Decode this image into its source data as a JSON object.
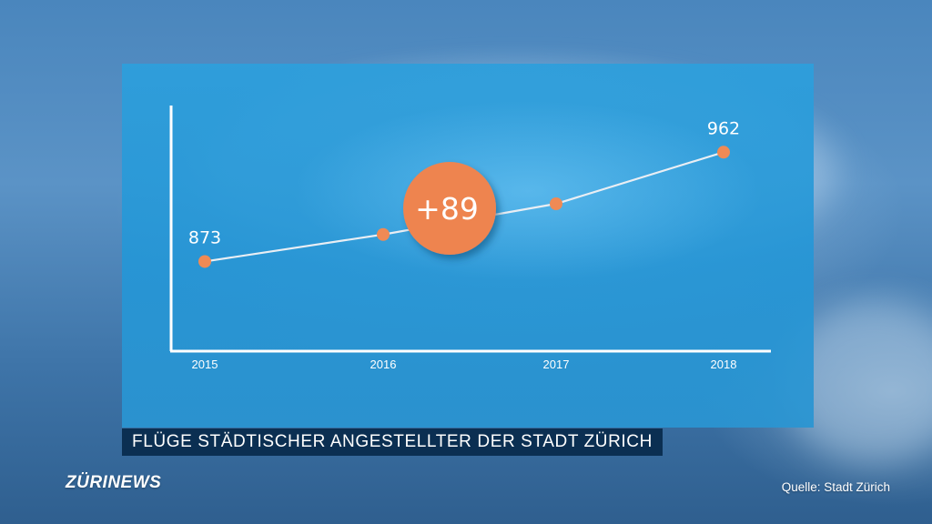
{
  "chart_data": {
    "type": "line",
    "categories": [
      "2015",
      "2016",
      "2017",
      "2018"
    ],
    "values": [
      873,
      895,
      920,
      962
    ],
    "data_labels": [
      "873",
      "",
      "",
      "962"
    ],
    "highlight_label": "+89",
    "title": "FLÜGE STÄDTISCHER ANGESTELLTER DER STADT ZÜRICH",
    "xlabel": "",
    "ylabel": "",
    "ylim": [
      800,
      1000
    ],
    "grid": false,
    "line_color": "#e9eef4",
    "marker_color": "#ef8a55",
    "badge_color": "#ee8450"
  },
  "caption": "FLÜGE STÄDTISCHER ANGESTELLTER DER STADT ZÜRICH",
  "logo": "ZÜRINEWS",
  "source": "Quelle: Stadt Zürich"
}
